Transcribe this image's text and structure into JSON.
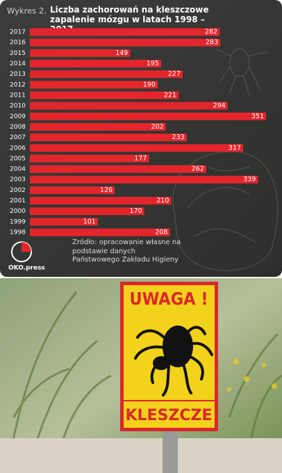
{
  "chart_data": {
    "type": "bar",
    "orientation": "horizontal",
    "label": "Wykres 2.",
    "title": "Liczba zachorowań na kleszczowe zapalenie mózgu w latach 1998 – 2017",
    "categories": [
      "2017",
      "2016",
      "2015",
      "2014",
      "2013",
      "2012",
      "2011",
      "2010",
      "2009",
      "2008",
      "2007",
      "2006",
      "2005",
      "2004",
      "2003",
      "2002",
      "2001",
      "2000",
      "1999",
      "1998"
    ],
    "values": [
      282,
      283,
      149,
      195,
      227,
      190,
      221,
      294,
      351,
      202,
      233,
      317,
      177,
      262,
      339,
      126,
      210,
      170,
      101,
      208
    ],
    "color": "#e3262b",
    "source": "Źródło: opracowanie własne na podstawie danych Państwowego Zakładu Higieny"
  },
  "logo": "OKO.press",
  "photo": {
    "sign_top": "UWAGA !",
    "sign_bottom": "KLESZCZE"
  }
}
